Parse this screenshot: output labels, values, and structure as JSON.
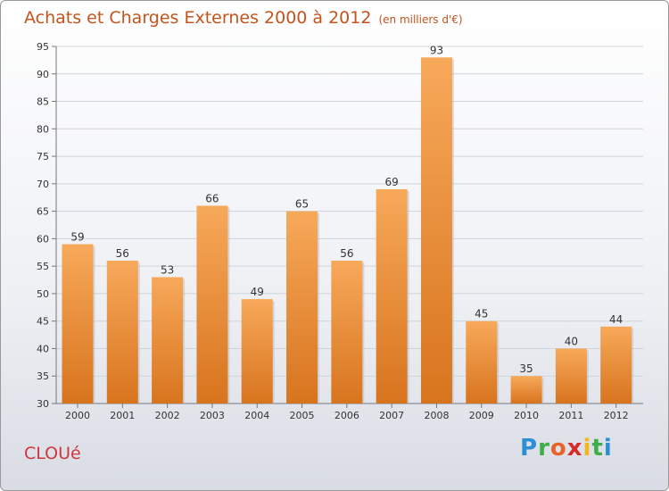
{
  "title": "Achats et Charges Externes 2000 à 2012",
  "unit": "(en milliers d'€)",
  "commune": "CLOUé",
  "logo": {
    "text": "Proxiti",
    "letters": [
      "P",
      "r",
      "o",
      "x",
      "i",
      "t",
      "i"
    ],
    "colors": [
      "#2a8fd6",
      "#3fae49",
      "#e8632b",
      "#d62b2b",
      "#f1b81d",
      "#3fae49",
      "#2a8fd6"
    ]
  },
  "colors": {
    "bar_top": "#f7a95a",
    "bar_bottom": "#d8741e",
    "title": "#c4541c",
    "commune": "#d0363f"
  },
  "chart_data": {
    "type": "bar",
    "categories": [
      "2000",
      "2001",
      "2002",
      "2003",
      "2004",
      "2005",
      "2006",
      "2007",
      "2008",
      "2009",
      "2010",
      "2011",
      "2012"
    ],
    "values": [
      59,
      56,
      53,
      66,
      49,
      65,
      56,
      69,
      93,
      45,
      35,
      40,
      44
    ],
    "ylim": [
      30,
      95
    ],
    "yticks": [
      30,
      35,
      40,
      45,
      50,
      55,
      60,
      65,
      70,
      75,
      80,
      85,
      90,
      95
    ],
    "grid": true
  }
}
